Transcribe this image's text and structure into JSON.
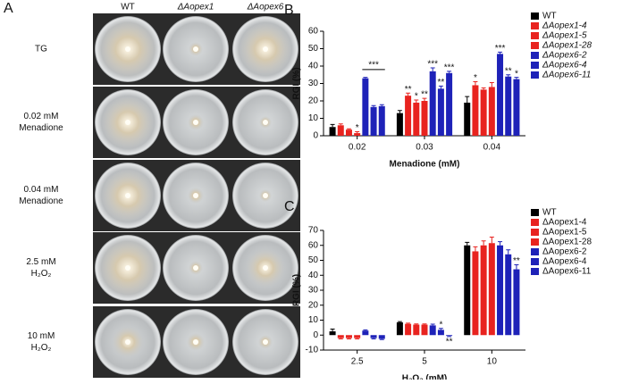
{
  "panel_a": {
    "label": "A",
    "columns": [
      "WT",
      "ΔAopex1",
      "ΔAopex6"
    ],
    "rows": [
      [
        "TG"
      ],
      [
        "0.02 mM",
        "Menadione"
      ],
      [
        "0.04 mM",
        "Menadione"
      ],
      [
        "2.5 mM",
        "H₂O₂"
      ],
      [
        "10 mM",
        "H₂O₂"
      ]
    ]
  },
  "chart_data": [
    {
      "type": "bar",
      "panel_label": "B",
      "y_label": "RGI (%)",
      "x_label": "Menadione (mM)",
      "categories": [
        "0.02",
        "0.03",
        "0.04"
      ],
      "ylim": [
        0,
        60
      ],
      "yticks": [
        0,
        10,
        20,
        30,
        40,
        50,
        60
      ],
      "legend": "right",
      "legend_italic": true,
      "annotations": [
        {
          "text": "***"
        }
      ],
      "series": [
        {
          "name": "WT",
          "color": "#000000",
          "values": [
            5,
            13,
            19
          ],
          "errors": [
            1.5,
            1.5,
            3.5
          ],
          "significance": [
            null,
            null,
            null
          ]
        },
        {
          "name": "ΔAopex1-4",
          "color": "#e8231f",
          "values": [
            6,
            23,
            29
          ],
          "errors": [
            0.8,
            1.5,
            2
          ],
          "significance": [
            null,
            "**",
            "*"
          ]
        },
        {
          "name": "ΔAopex1-5",
          "color": "#e8231f",
          "values": [
            3.5,
            19,
            26.5
          ],
          "errors": [
            0.5,
            1.5,
            1
          ],
          "significance": [
            null,
            "*",
            null
          ]
        },
        {
          "name": "ΔAopex1-28",
          "color": "#e8231f",
          "values": [
            1.5,
            20,
            28
          ],
          "errors": [
            0.8,
            1.5,
            2.5
          ],
          "significance": [
            "*",
            "**",
            null
          ]
        },
        {
          "name": "ΔAopex6-2",
          "color": "#1e22b8",
          "values": [
            33,
            37,
            47
          ],
          "errors": [
            0.5,
            2,
            1
          ],
          "significance": [
            null,
            "***",
            "***"
          ]
        },
        {
          "name": "ΔAopex6-4",
          "color": "#1e22b8",
          "values": [
            16.5,
            27,
            34
          ],
          "errors": [
            0.8,
            1.5,
            1
          ],
          "significance": [
            null,
            "**",
            "**"
          ]
        },
        {
          "name": "ΔAopex6-11",
          "color": "#1e22b8",
          "values": [
            17,
            36,
            32.5
          ],
          "errors": [
            0.8,
            1,
            1
          ],
          "significance": [
            null,
            "***",
            "*"
          ]
        }
      ]
    },
    {
      "type": "bar",
      "panel_label": "C",
      "y_label": "RGI (%)",
      "x_label": "H₂O₂ (mM)",
      "categories": [
        "2.5",
        "5",
        "10"
      ],
      "ylim": [
        -10,
        70
      ],
      "yticks": [
        -10,
        0,
        10,
        20,
        30,
        40,
        50,
        60,
        70
      ],
      "legend": "right",
      "legend_italic": false,
      "series": [
        {
          "name": "WT",
          "color": "#000000",
          "values": [
            2.5,
            8.5,
            60
          ],
          "errors": [
            1.5,
            0.5,
            2
          ],
          "significance": [
            null,
            null,
            null
          ]
        },
        {
          "name": "ΔAopex1-4",
          "color": "#e8231f",
          "values": [
            -2,
            7.5,
            56
          ],
          "errors": [
            0.5,
            0.5,
            3
          ],
          "significance": [
            null,
            null,
            null
          ]
        },
        {
          "name": "ΔAopex1-5",
          "color": "#e8231f",
          "values": [
            -2,
            7,
            60
          ],
          "errors": [
            0.5,
            0.5,
            3
          ],
          "significance": [
            null,
            null,
            null
          ]
        },
        {
          "name": "ΔAopex1-28",
          "color": "#e8231f",
          "values": [
            -2,
            7,
            61.5
          ],
          "errors": [
            0.5,
            0.5,
            4
          ],
          "significance": [
            null,
            null,
            null
          ]
        },
        {
          "name": "ΔAopex6-2",
          "color": "#1e22b8",
          "values": [
            3,
            6.5,
            60
          ],
          "errors": [
            0.5,
            0.8,
            2.5
          ],
          "significance": [
            null,
            null,
            null
          ]
        },
        {
          "name": "ΔAopex6-4",
          "color": "#1e22b8",
          "values": [
            -2,
            3.5,
            54
          ],
          "errors": [
            0.5,
            1,
            3
          ],
          "significance": [
            null,
            "*",
            null
          ]
        },
        {
          "name": "ΔAopex6-11",
          "color": "#1e22b8",
          "values": [
            -2.5,
            -0.5,
            44
          ],
          "errors": [
            0.5,
            0.5,
            3
          ],
          "significance": [
            null,
            "**",
            "**"
          ]
        }
      ]
    }
  ]
}
